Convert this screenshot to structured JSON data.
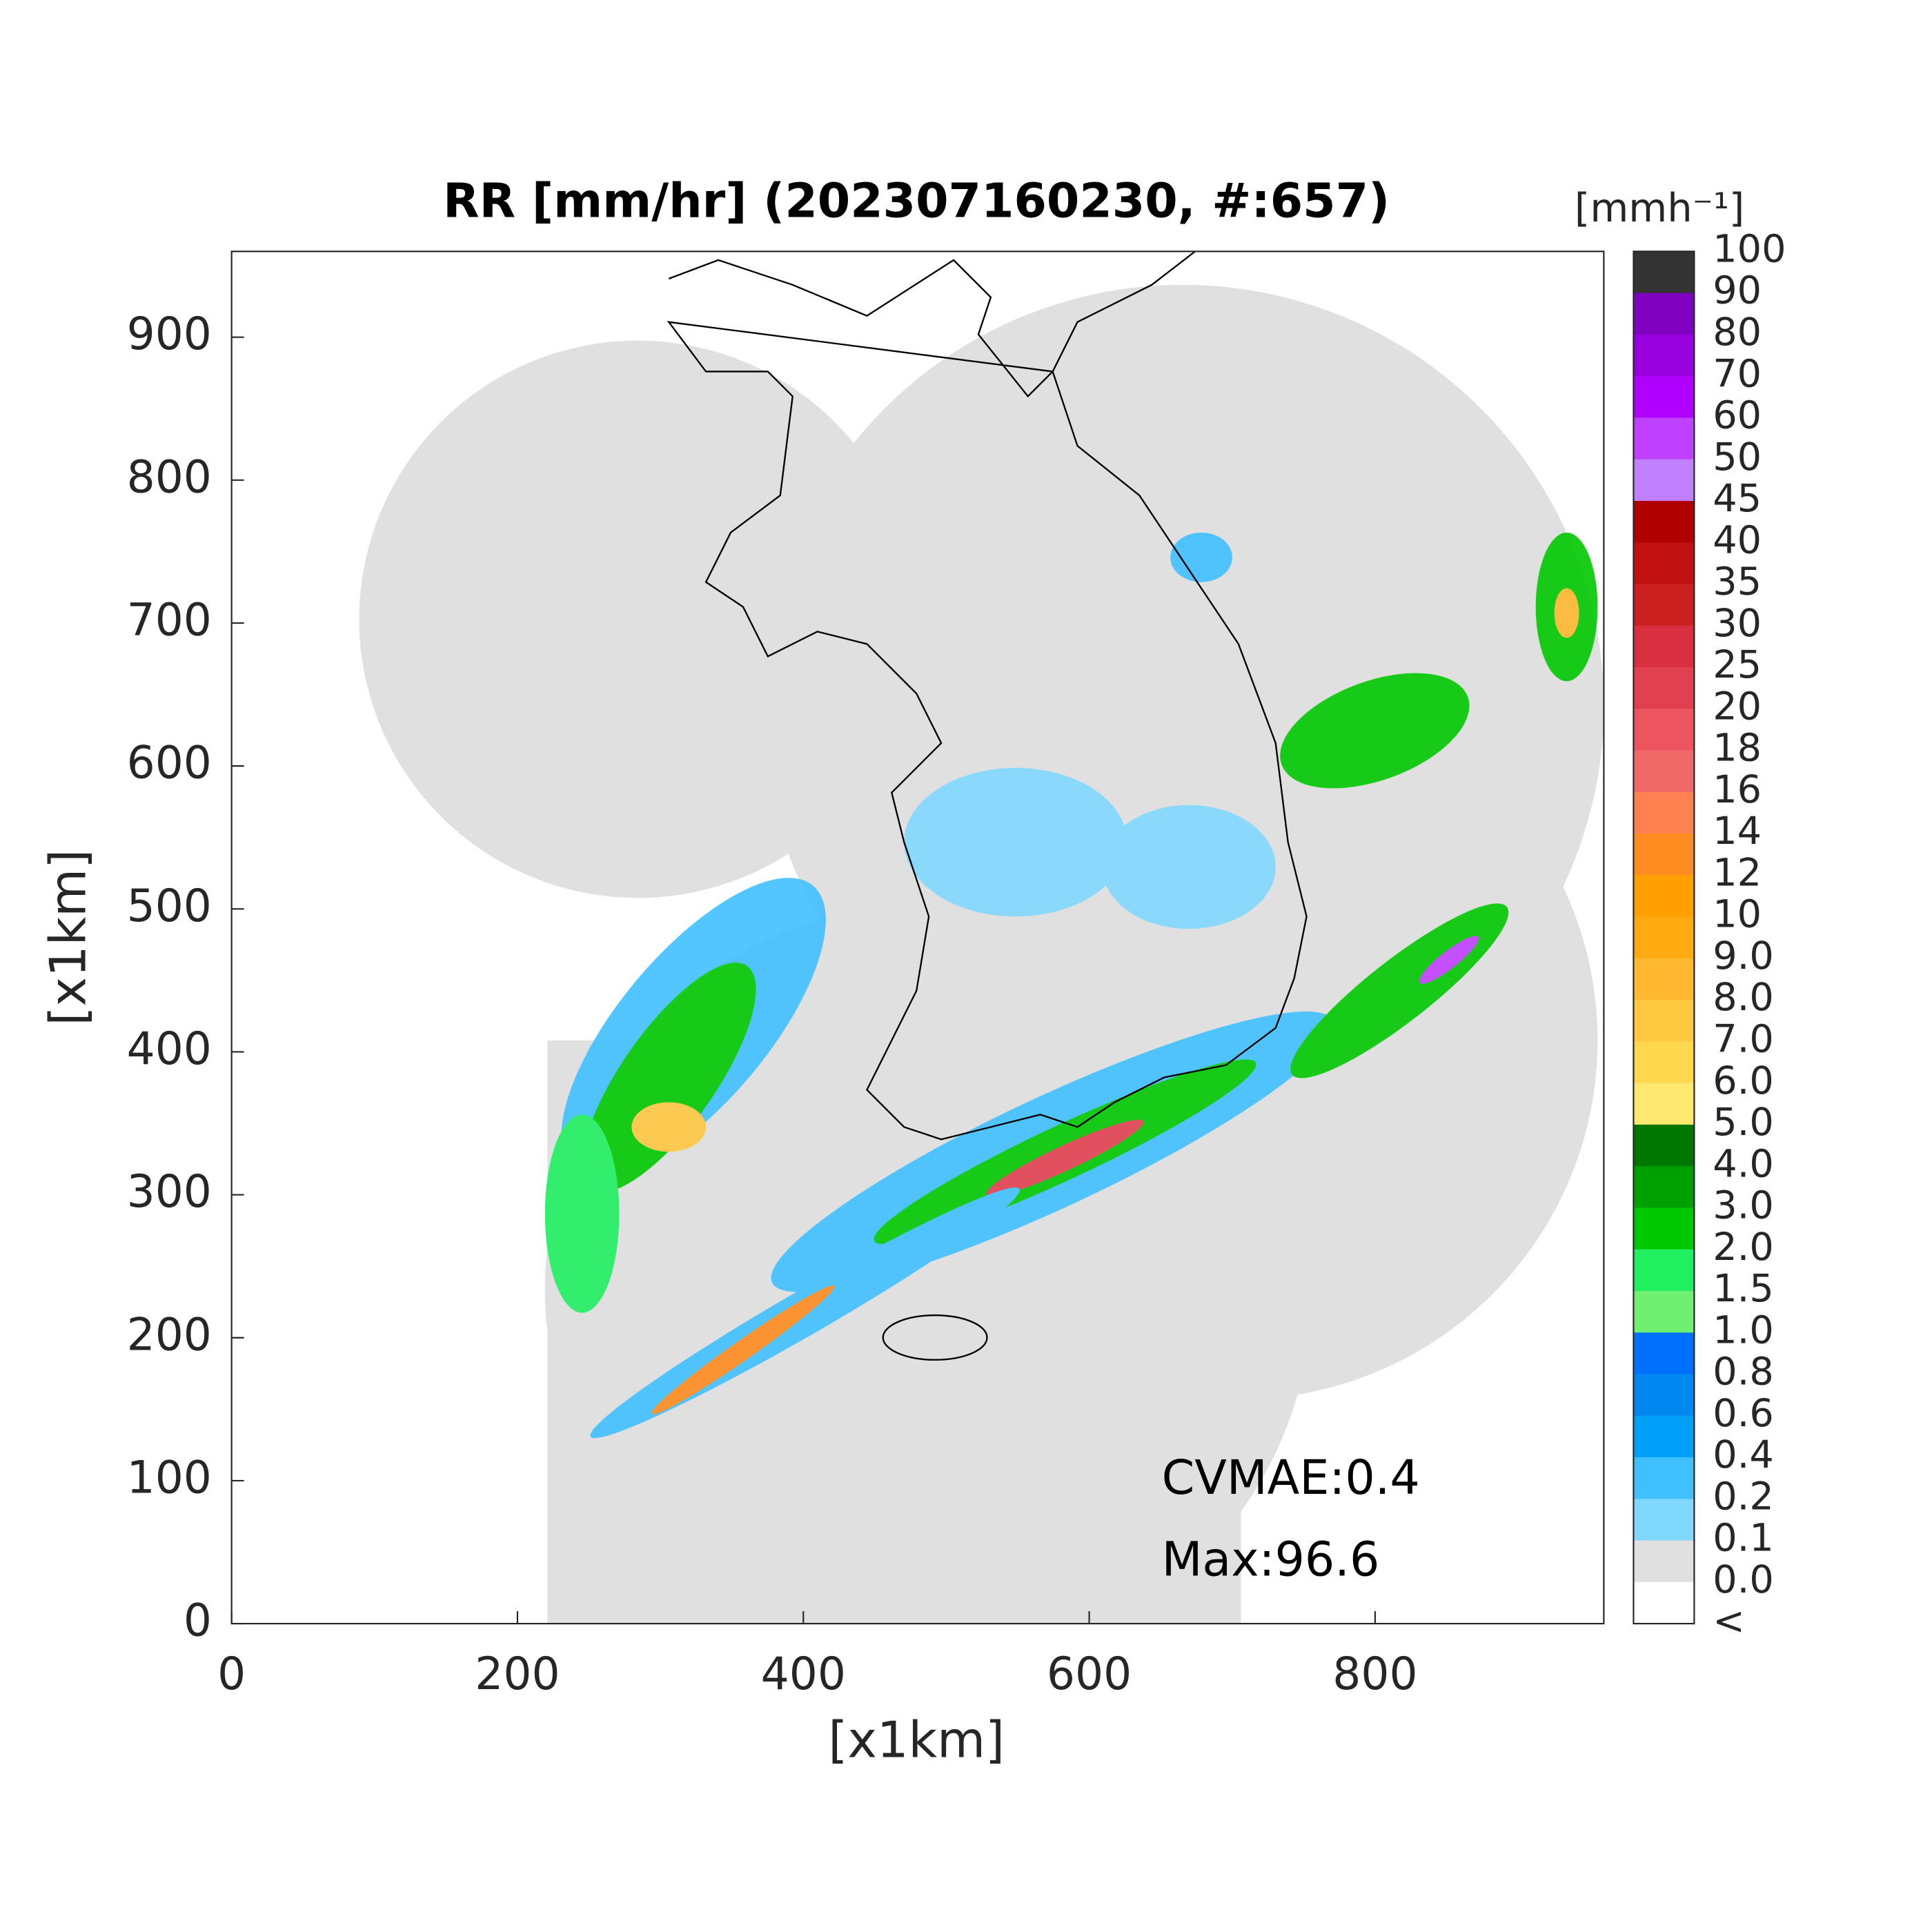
{
  "chart_data": {
    "type": "map",
    "title": "RR [mm/hr] (202307160230, #:657)",
    "xlabel": "[x1km]",
    "ylabel": "[x1km]",
    "xlim": [
      0,
      960
    ],
    "ylim": [
      0,
      960
    ],
    "xticks": [
      0,
      200,
      400,
      600,
      800
    ],
    "yticks": [
      0,
      100,
      200,
      300,
      400,
      500,
      600,
      700,
      800,
      900
    ],
    "annotations": [
      "CVMAE:0.4",
      "Max:96.6"
    ],
    "colorbar": {
      "unit": "[mmh⁻¹]",
      "labels": [
        "100",
        "90",
        "80",
        "70",
        "60",
        "50",
        "45",
        "40",
        "35",
        "30",
        "25",
        "20",
        "18",
        "16",
        "14",
        "12",
        "10",
        "9.0",
        "8.0",
        "7.0",
        "6.0",
        "5.0",
        "4.0",
        "3.0",
        "2.0",
        "1.5",
        "1.0",
        "0.8",
        "0.6",
        "0.4",
        "0.2",
        "0.1",
        "0.0",
        "<"
      ],
      "colors": [
        "#333333",
        "#8000c0",
        "#9900e0",
        "#b000ff",
        "#c040ff",
        "#c080ff",
        "#b00000",
        "#c01010",
        "#cc2020",
        "#d83040",
        "#e04050",
        "#ec5560",
        "#f06868",
        "#ff8050",
        "#ff8c20",
        "#ffa000",
        "#ffaa10",
        "#ffb830",
        "#ffc840",
        "#ffd850",
        "#ffe870",
        "#007800",
        "#00a000",
        "#00c800",
        "#20f060",
        "#70f070",
        "#0070ff",
        "#0088f0",
        "#00a0f8",
        "#40c0ff",
        "#80d8ff",
        "#e0e0e0",
        "#ffffff"
      ]
    }
  }
}
